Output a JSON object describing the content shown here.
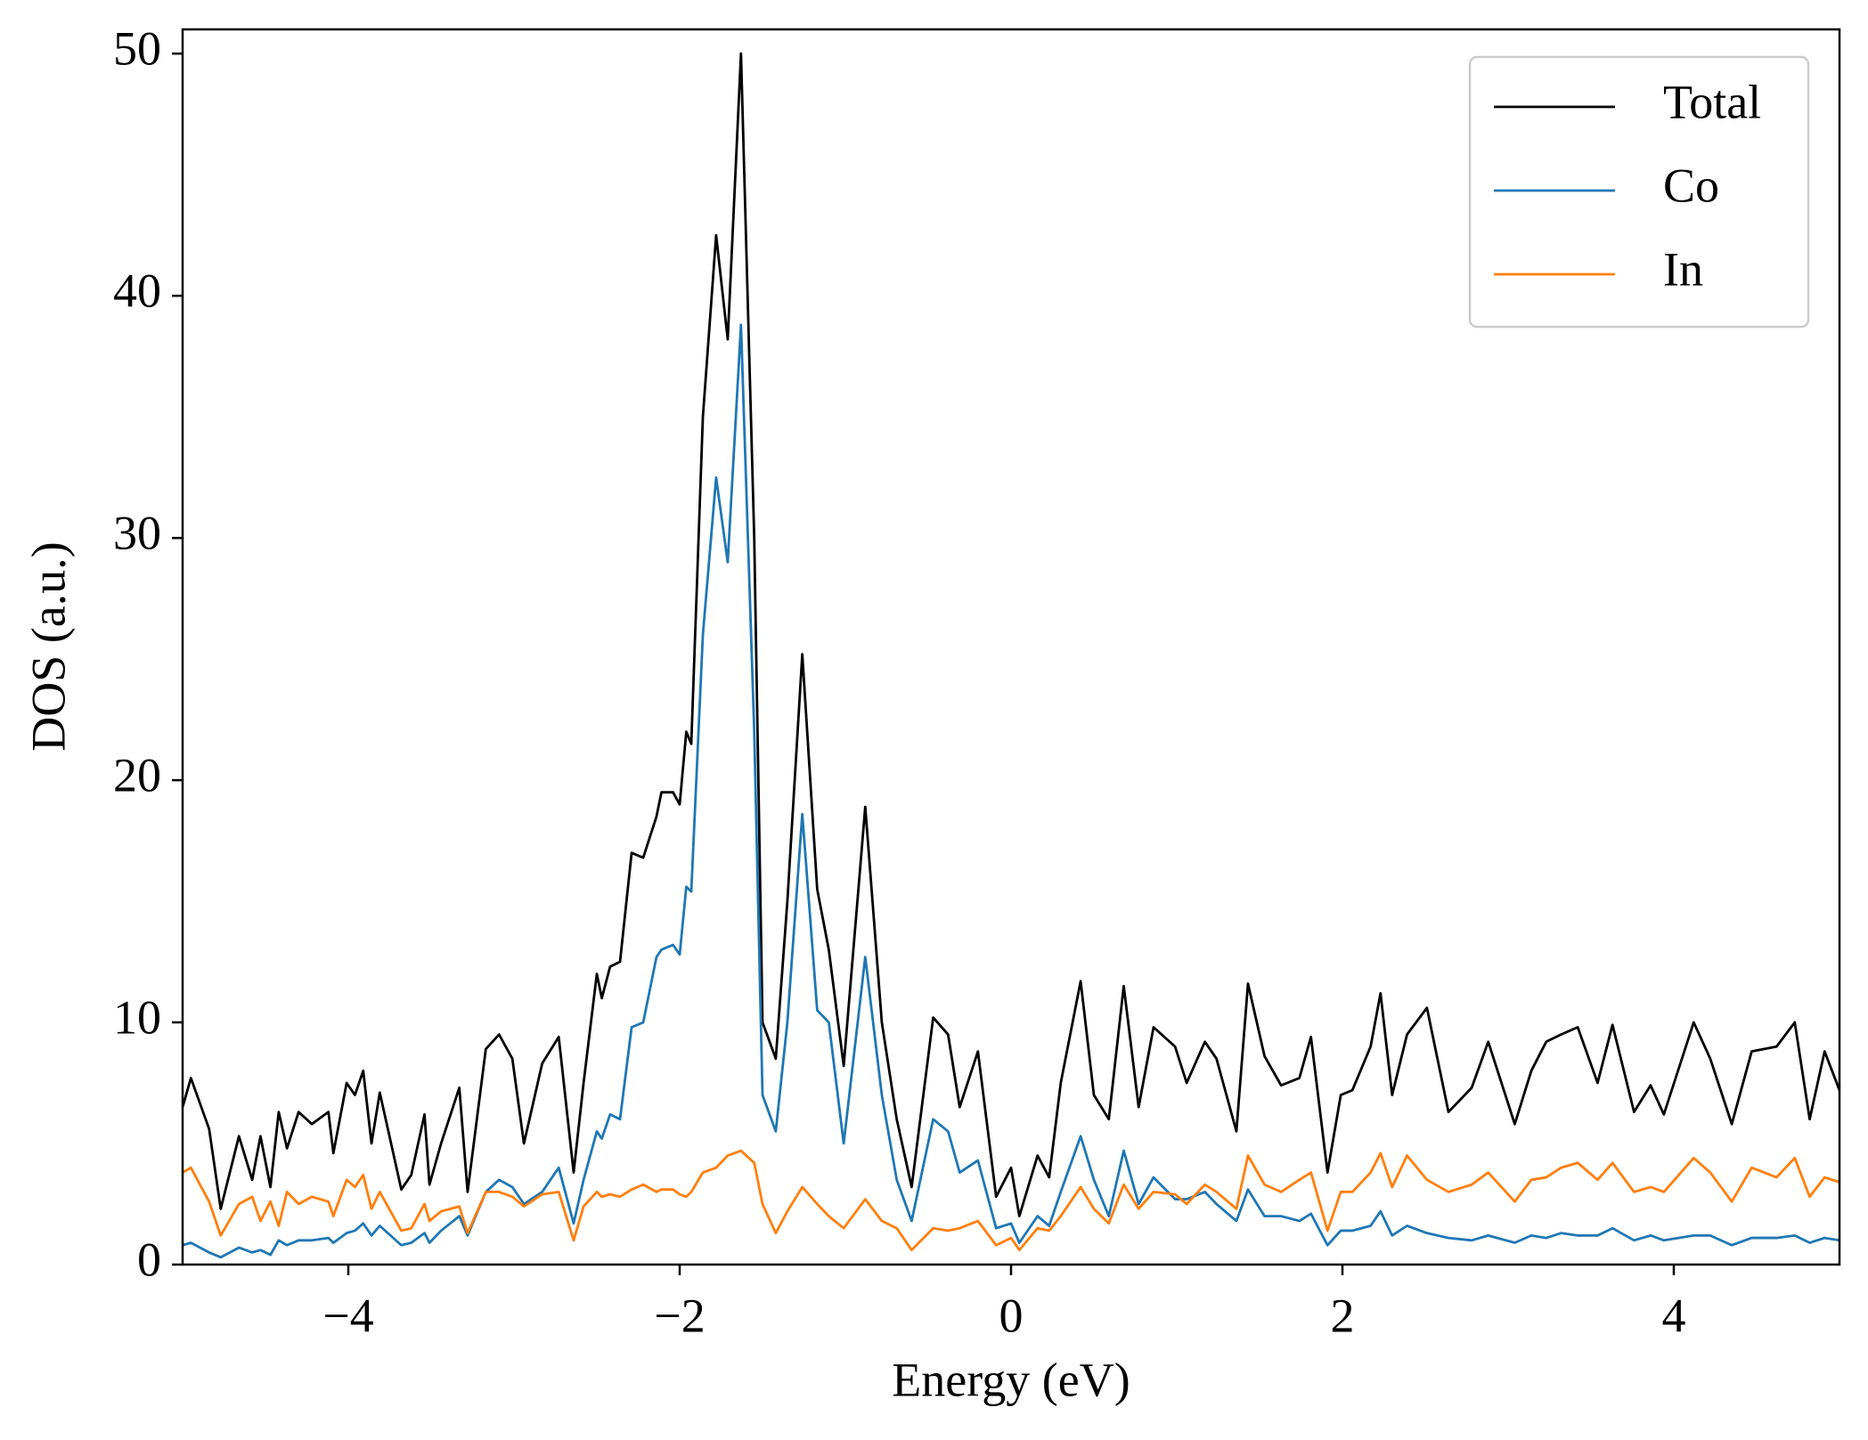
{
  "chart_data": {
    "type": "line",
    "xlabel": "Energy (eV)",
    "ylabel": "DOS (a.u.)",
    "x": [
      -5.0,
      -4.95,
      -4.84,
      -4.77,
      -4.66,
      -4.58,
      -4.53,
      -4.47,
      -4.42,
      -4.37,
      -4.3,
      -4.22,
      -4.12,
      -4.09,
      -4.01,
      -3.96,
      -3.91,
      -3.86,
      -3.81,
      -3.68,
      -3.62,
      -3.54,
      -3.51,
      -3.44,
      -3.33,
      -3.28,
      -3.17,
      -3.09,
      -3.01,
      -2.94,
      -2.83,
      -2.73,
      -2.64,
      -2.58,
      -2.5,
      -2.47,
      -2.42,
      -2.36,
      -2.29,
      -2.22,
      -2.14,
      -2.11,
      -2.04,
      -2.0,
      -1.96,
      -1.93,
      -1.86,
      -1.78,
      -1.71,
      -1.63,
      -1.55,
      -1.5,
      -1.42,
      -1.35,
      -1.26,
      -1.17,
      -1.1,
      -1.01,
      -0.88,
      -0.78,
      -0.69,
      -0.6,
      -0.47,
      -0.38,
      -0.31,
      -0.2,
      -0.09,
      0.0,
      0.05,
      0.16,
      0.23,
      0.3,
      0.42,
      0.5,
      0.59,
      0.68,
      0.77,
      0.86,
      0.99,
      1.06,
      1.17,
      1.24,
      1.36,
      1.43,
      1.53,
      1.63,
      1.74,
      1.81,
      1.91,
      1.99,
      2.06,
      2.17,
      2.23,
      2.3,
      2.39,
      2.51,
      2.64,
      2.78,
      2.88,
      3.04,
      3.14,
      3.23,
      3.32,
      3.42,
      3.54,
      3.63,
      3.76,
      3.86,
      3.94,
      4.12,
      4.22,
      4.35,
      4.47,
      4.62,
      4.73,
      4.82,
      4.91,
      5.0
    ],
    "series": [
      {
        "name": "Total",
        "color": "#000000",
        "values": [
          6.5,
          7.7,
          5.6,
          2.3,
          5.3,
          3.5,
          5.3,
          3.2,
          6.3,
          4.8,
          6.3,
          5.8,
          6.3,
          4.6,
          7.5,
          7.0,
          8.0,
          5.0,
          7.1,
          3.1,
          3.7,
          6.2,
          3.3,
          5.0,
          7.3,
          3.0,
          8.9,
          9.5,
          8.5,
          5.0,
          8.3,
          9.4,
          3.8,
          7.5,
          12.0,
          11.0,
          12.3,
          12.5,
          17.0,
          16.8,
          18.5,
          19.5,
          19.5,
          19.0,
          22.0,
          21.5,
          35,
          42.5,
          38.2,
          50,
          30,
          10,
          8.5,
          15,
          25.2,
          15.5,
          13,
          8.2,
          18.9,
          10,
          6,
          3.2,
          10.2,
          9.5,
          6.5,
          8.8,
          2.8,
          4.0,
          2.0,
          4.5,
          3.6,
          7.5,
          11.7,
          7.0,
          6.0,
          11.5,
          6.5,
          9.8,
          9.0,
          7.5,
          9.2,
          8.5,
          5.5,
          11.6,
          8.6,
          7.4,
          7.7,
          9.4,
          3.8,
          7.0,
          7.2,
          9.0,
          11.2,
          7.0,
          9.5,
          10.6,
          6.3,
          7.3,
          9.2,
          5.8,
          8.0,
          9.2,
          9.5,
          9.8,
          7.5,
          9.9,
          6.3,
          7.4,
          6.2,
          10.0,
          8.5,
          5.8,
          8.8,
          9.0,
          10.0,
          6.0,
          8.8,
          7.2
        ]
      },
      {
        "name": "Co",
        "color": "#1f77b4",
        "values": [
          0.8,
          0.9,
          0.5,
          0.3,
          0.7,
          0.5,
          0.6,
          0.4,
          1.0,
          0.8,
          1.0,
          1.0,
          1.1,
          0.9,
          1.3,
          1.4,
          1.7,
          1.2,
          1.6,
          0.8,
          0.9,
          1.3,
          0.9,
          1.4,
          2.0,
          1.2,
          3.0,
          3.5,
          3.2,
          2.5,
          3.0,
          4.0,
          1.7,
          3.5,
          5.5,
          5.2,
          6.2,
          6.0,
          9.8,
          10,
          12.7,
          13,
          13.2,
          12.8,
          15.6,
          15.4,
          26,
          32.5,
          29,
          38.8,
          22,
          7,
          5.5,
          10,
          18.6,
          10.5,
          10,
          5,
          12.7,
          7,
          3.5,
          1.8,
          6.0,
          5.5,
          3.8,
          4.3,
          1.5,
          1.7,
          0.9,
          2.0,
          1.6,
          3.0,
          5.3,
          3.5,
          2.0,
          4.7,
          2.5,
          3.6,
          2.7,
          2.7,
          3.0,
          2.5,
          1.8,
          3.1,
          2.0,
          2.0,
          1.8,
          2.1,
          0.8,
          1.4,
          1.4,
          1.6,
          2.2,
          1.2,
          1.6,
          1.3,
          1.1,
          1.0,
          1.2,
          0.9,
          1.2,
          1.1,
          1.3,
          1.2,
          1.2,
          1.5,
          1.0,
          1.2,
          1.0,
          1.2,
          1.2,
          0.8,
          1.1,
          1.1,
          1.2,
          0.9,
          1.1,
          1.0
        ]
      },
      {
        "name": "In",
        "color": "#ff7f0e",
        "values": [
          3.8,
          4.0,
          2.6,
          1.2,
          2.5,
          2.8,
          1.8,
          2.6,
          1.6,
          3.0,
          2.5,
          2.8,
          2.6,
          2.0,
          3.5,
          3.2,
          3.7,
          2.3,
          3.0,
          1.4,
          1.5,
          2.5,
          1.8,
          2.2,
          2.4,
          1.3,
          3.0,
          3.0,
          2.8,
          2.4,
          2.9,
          3.0,
          1.0,
          2.4,
          3.0,
          2.8,
          2.9,
          2.8,
          3.1,
          3.3,
          3.0,
          3.1,
          3.1,
          2.9,
          2.8,
          3.0,
          3.8,
          4.0,
          4.5,
          4.7,
          4.2,
          2.5,
          1.3,
          2.2,
          3.2,
          2.5,
          2.0,
          1.5,
          2.7,
          1.8,
          1.5,
          0.6,
          1.5,
          1.4,
          1.5,
          1.8,
          0.8,
          1.1,
          0.6,
          1.5,
          1.4,
          2.0,
          3.2,
          2.3,
          1.7,
          3.3,
          2.3,
          3.0,
          2.9,
          2.5,
          3.3,
          3.0,
          2.3,
          4.5,
          3.3,
          3.0,
          3.5,
          3.8,
          1.4,
          3.0,
          3.0,
          3.8,
          4.6,
          3.2,
          4.5,
          3.5,
          3.0,
          3.3,
          3.8,
          2.6,
          3.5,
          3.6,
          4.0,
          4.2,
          3.5,
          4.2,
          3.0,
          3.2,
          3.0,
          4.4,
          3.8,
          2.6,
          4.0,
          3.6,
          4.4,
          2.8,
          3.6,
          3.4
        ]
      }
    ],
    "xlim": [
      -5,
      5
    ],
    "xticks": [
      {
        "value": -4,
        "label": "−4"
      },
      {
        "value": -2,
        "label": "−2"
      },
      0,
      2,
      4
    ],
    "ylim": [
      0,
      51
    ],
    "yticks": [
      0,
      10,
      20,
      30,
      40,
      50
    ],
    "legend": "upper right",
    "grid": false
  }
}
